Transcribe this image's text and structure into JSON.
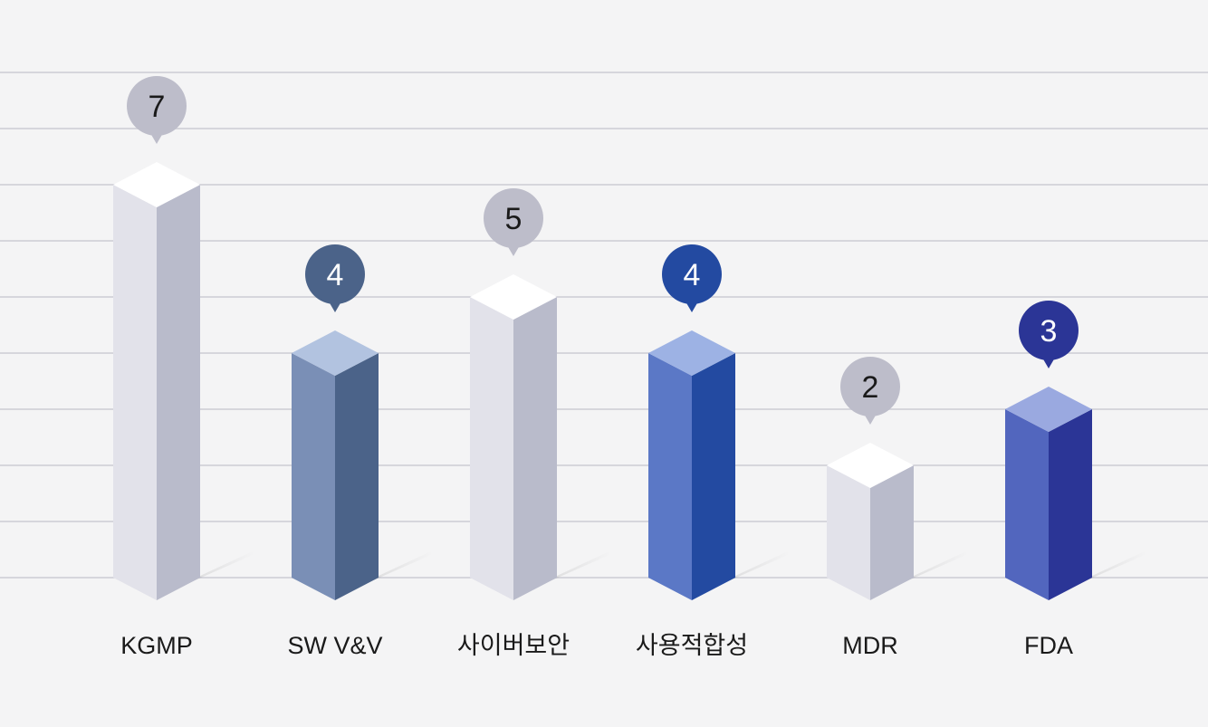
{
  "chart_data": {
    "type": "bar",
    "title": "",
    "xlabel": "",
    "ylabel": "",
    "categories": [
      "KGMP",
      "SW V&V",
      "사이버보안",
      "사용적합성",
      "MDR",
      "FDA"
    ],
    "values": [
      7,
      4,
      5,
      4,
      2,
      3
    ],
    "ylim": [
      0,
      9
    ],
    "grid": true,
    "colors": [
      {
        "front": "#e2e2ea",
        "side": "#b9bbcb",
        "top": "#ffffff",
        "badge": "#bdbdca",
        "badge_text": "#1a1a1a"
      },
      {
        "front": "#7a8fb6",
        "side": "#4b6389",
        "top": "#b2c3e0",
        "badge": "#4b6389",
        "badge_text": "#ffffff"
      },
      {
        "front": "#e2e2ea",
        "side": "#b9bbcb",
        "top": "#ffffff",
        "badge": "#bdbdca",
        "badge_text": "#1a1a1a"
      },
      {
        "front": "#5b78c6",
        "side": "#234aa1",
        "top": "#9db2e4",
        "badge": "#234aa1",
        "badge_text": "#ffffff"
      },
      {
        "front": "#e2e2ea",
        "side": "#b9bbcb",
        "top": "#ffffff",
        "badge": "#bdbdca",
        "badge_text": "#1a1a1a"
      },
      {
        "front": "#5266be",
        "side": "#2b3596",
        "top": "#9aa9e0",
        "badge": "#2b3596",
        "badge_text": "#ffffff"
      }
    ],
    "grid_color": "#d6d6dc"
  }
}
